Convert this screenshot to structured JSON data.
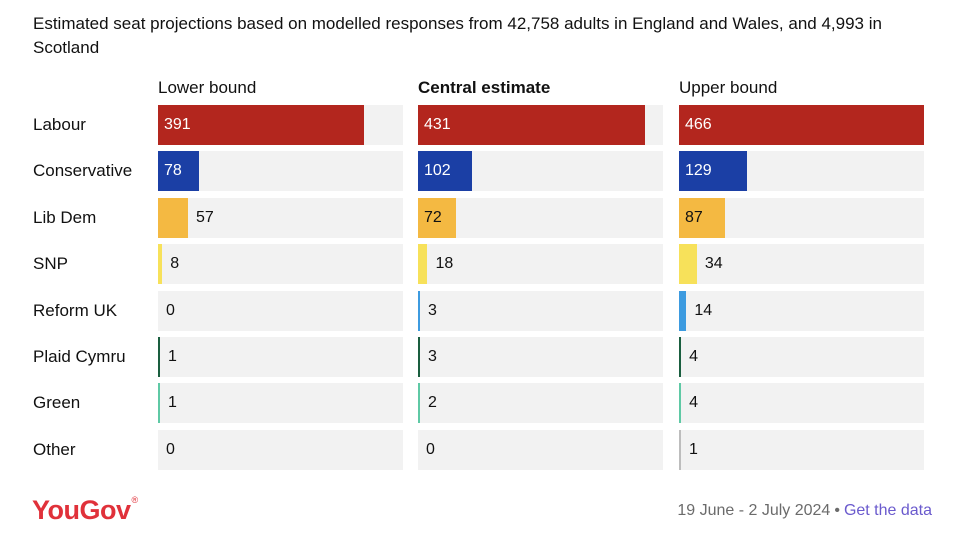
{
  "subtitle": "Estimated seat projections based on modelled responses from 42,758 adults in England and Wales, and 4,993 in Scotland",
  "footer": {
    "logo": "YouGov",
    "date_range": "19 June - 2 July 2024",
    "separator": "•",
    "link": "Get the data"
  },
  "chart_data": {
    "type": "bar",
    "orientation": "horizontal",
    "categories": [
      "Labour",
      "Conservative",
      "Lib Dem",
      "SNP",
      "Reform UK",
      "Plaid Cymru",
      "Green",
      "Other"
    ],
    "panels": [
      {
        "name": "Lower bound",
        "bold": false,
        "values": [
          391,
          78,
          57,
          8,
          0,
          1,
          1,
          0
        ]
      },
      {
        "name": "Central estimate",
        "bold": true,
        "values": [
          431,
          102,
          72,
          18,
          3,
          3,
          2,
          0
        ]
      },
      {
        "name": "Upper bound",
        "bold": false,
        "values": [
          466,
          129,
          87,
          34,
          14,
          4,
          4,
          1
        ]
      }
    ],
    "colors": [
      "#b3261e",
      "#1b3fa5",
      "#f4b942",
      "#f7e15a",
      "#3d9be0",
      "#1a5e3f",
      "#5fc9a5",
      "#bdbdbd"
    ],
    "label_colors": [
      "#ffffff",
      "#ffffff",
      "#111111",
      "#111111",
      "#111111",
      "#111111",
      "#111111",
      "#111111"
    ],
    "xlim": [
      0,
      466
    ],
    "grid": false,
    "legend": "none"
  }
}
